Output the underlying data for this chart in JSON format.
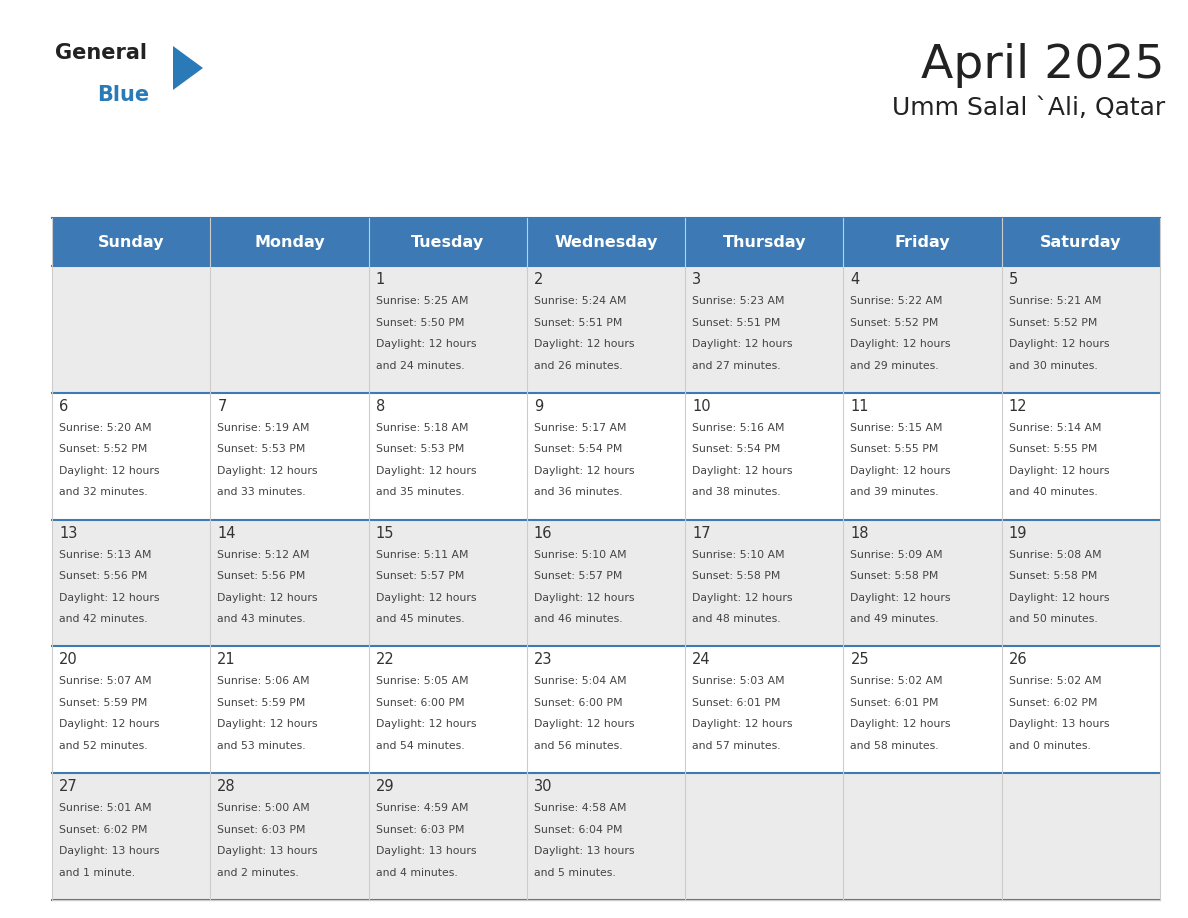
{
  "title": "April 2025",
  "subtitle": "Umm Salal `Ali, Qatar",
  "days_of_week": [
    "Sunday",
    "Monday",
    "Tuesday",
    "Wednesday",
    "Thursday",
    "Friday",
    "Saturday"
  ],
  "header_bg": "#3d7ab5",
  "header_text": "#ffffff",
  "row_bg_even": "#ebebeb",
  "row_bg_odd": "#ffffff",
  "cell_border_blue": "#3d7ab5",
  "cell_border_light": "#cccccc",
  "day_num_color": "#333333",
  "text_color": "#444444",
  "title_color": "#222222",
  "logo_text_color": "#222222",
  "logo_blue_color": "#2a7ab8",
  "logo_triangle_color": "#2a7ab8",
  "calendar_data": [
    [
      {
        "day": "",
        "sunrise": "",
        "sunset": "",
        "daylight": "",
        "daylight2": ""
      },
      {
        "day": "",
        "sunrise": "",
        "sunset": "",
        "daylight": "",
        "daylight2": ""
      },
      {
        "day": "1",
        "sunrise": "Sunrise: 5:25 AM",
        "sunset": "Sunset: 5:50 PM",
        "daylight": "Daylight: 12 hours",
        "daylight2": "and 24 minutes."
      },
      {
        "day": "2",
        "sunrise": "Sunrise: 5:24 AM",
        "sunset": "Sunset: 5:51 PM",
        "daylight": "Daylight: 12 hours",
        "daylight2": "and 26 minutes."
      },
      {
        "day": "3",
        "sunrise": "Sunrise: 5:23 AM",
        "sunset": "Sunset: 5:51 PM",
        "daylight": "Daylight: 12 hours",
        "daylight2": "and 27 minutes."
      },
      {
        "day": "4",
        "sunrise": "Sunrise: 5:22 AM",
        "sunset": "Sunset: 5:52 PM",
        "daylight": "Daylight: 12 hours",
        "daylight2": "and 29 minutes."
      },
      {
        "day": "5",
        "sunrise": "Sunrise: 5:21 AM",
        "sunset": "Sunset: 5:52 PM",
        "daylight": "Daylight: 12 hours",
        "daylight2": "and 30 minutes."
      }
    ],
    [
      {
        "day": "6",
        "sunrise": "Sunrise: 5:20 AM",
        "sunset": "Sunset: 5:52 PM",
        "daylight": "Daylight: 12 hours",
        "daylight2": "and 32 minutes."
      },
      {
        "day": "7",
        "sunrise": "Sunrise: 5:19 AM",
        "sunset": "Sunset: 5:53 PM",
        "daylight": "Daylight: 12 hours",
        "daylight2": "and 33 minutes."
      },
      {
        "day": "8",
        "sunrise": "Sunrise: 5:18 AM",
        "sunset": "Sunset: 5:53 PM",
        "daylight": "Daylight: 12 hours",
        "daylight2": "and 35 minutes."
      },
      {
        "day": "9",
        "sunrise": "Sunrise: 5:17 AM",
        "sunset": "Sunset: 5:54 PM",
        "daylight": "Daylight: 12 hours",
        "daylight2": "and 36 minutes."
      },
      {
        "day": "10",
        "sunrise": "Sunrise: 5:16 AM",
        "sunset": "Sunset: 5:54 PM",
        "daylight": "Daylight: 12 hours",
        "daylight2": "and 38 minutes."
      },
      {
        "day": "11",
        "sunrise": "Sunrise: 5:15 AM",
        "sunset": "Sunset: 5:55 PM",
        "daylight": "Daylight: 12 hours",
        "daylight2": "and 39 minutes."
      },
      {
        "day": "12",
        "sunrise": "Sunrise: 5:14 AM",
        "sunset": "Sunset: 5:55 PM",
        "daylight": "Daylight: 12 hours",
        "daylight2": "and 40 minutes."
      }
    ],
    [
      {
        "day": "13",
        "sunrise": "Sunrise: 5:13 AM",
        "sunset": "Sunset: 5:56 PM",
        "daylight": "Daylight: 12 hours",
        "daylight2": "and 42 minutes."
      },
      {
        "day": "14",
        "sunrise": "Sunrise: 5:12 AM",
        "sunset": "Sunset: 5:56 PM",
        "daylight": "Daylight: 12 hours",
        "daylight2": "and 43 minutes."
      },
      {
        "day": "15",
        "sunrise": "Sunrise: 5:11 AM",
        "sunset": "Sunset: 5:57 PM",
        "daylight": "Daylight: 12 hours",
        "daylight2": "and 45 minutes."
      },
      {
        "day": "16",
        "sunrise": "Sunrise: 5:10 AM",
        "sunset": "Sunset: 5:57 PM",
        "daylight": "Daylight: 12 hours",
        "daylight2": "and 46 minutes."
      },
      {
        "day": "17",
        "sunrise": "Sunrise: 5:10 AM",
        "sunset": "Sunset: 5:58 PM",
        "daylight": "Daylight: 12 hours",
        "daylight2": "and 48 minutes."
      },
      {
        "day": "18",
        "sunrise": "Sunrise: 5:09 AM",
        "sunset": "Sunset: 5:58 PM",
        "daylight": "Daylight: 12 hours",
        "daylight2": "and 49 minutes."
      },
      {
        "day": "19",
        "sunrise": "Sunrise: 5:08 AM",
        "sunset": "Sunset: 5:58 PM",
        "daylight": "Daylight: 12 hours",
        "daylight2": "and 50 minutes."
      }
    ],
    [
      {
        "day": "20",
        "sunrise": "Sunrise: 5:07 AM",
        "sunset": "Sunset: 5:59 PM",
        "daylight": "Daylight: 12 hours",
        "daylight2": "and 52 minutes."
      },
      {
        "day": "21",
        "sunrise": "Sunrise: 5:06 AM",
        "sunset": "Sunset: 5:59 PM",
        "daylight": "Daylight: 12 hours",
        "daylight2": "and 53 minutes."
      },
      {
        "day": "22",
        "sunrise": "Sunrise: 5:05 AM",
        "sunset": "Sunset: 6:00 PM",
        "daylight": "Daylight: 12 hours",
        "daylight2": "and 54 minutes."
      },
      {
        "day": "23",
        "sunrise": "Sunrise: 5:04 AM",
        "sunset": "Sunset: 6:00 PM",
        "daylight": "Daylight: 12 hours",
        "daylight2": "and 56 minutes."
      },
      {
        "day": "24",
        "sunrise": "Sunrise: 5:03 AM",
        "sunset": "Sunset: 6:01 PM",
        "daylight": "Daylight: 12 hours",
        "daylight2": "and 57 minutes."
      },
      {
        "day": "25",
        "sunrise": "Sunrise: 5:02 AM",
        "sunset": "Sunset: 6:01 PM",
        "daylight": "Daylight: 12 hours",
        "daylight2": "and 58 minutes."
      },
      {
        "day": "26",
        "sunrise": "Sunrise: 5:02 AM",
        "sunset": "Sunset: 6:02 PM",
        "daylight": "Daylight: 13 hours",
        "daylight2": "and 0 minutes."
      }
    ],
    [
      {
        "day": "27",
        "sunrise": "Sunrise: 5:01 AM",
        "sunset": "Sunset: 6:02 PM",
        "daylight": "Daylight: 13 hours",
        "daylight2": "and 1 minute."
      },
      {
        "day": "28",
        "sunrise": "Sunrise: 5:00 AM",
        "sunset": "Sunset: 6:03 PM",
        "daylight": "Daylight: 13 hours",
        "daylight2": "and 2 minutes."
      },
      {
        "day": "29",
        "sunrise": "Sunrise: 4:59 AM",
        "sunset": "Sunset: 6:03 PM",
        "daylight": "Daylight: 13 hours",
        "daylight2": "and 4 minutes."
      },
      {
        "day": "30",
        "sunrise": "Sunrise: 4:58 AM",
        "sunset": "Sunset: 6:04 PM",
        "daylight": "Daylight: 13 hours",
        "daylight2": "and 5 minutes."
      },
      {
        "day": "",
        "sunrise": "",
        "sunset": "",
        "daylight": "",
        "daylight2": ""
      },
      {
        "day": "",
        "sunrise": "",
        "sunset": "",
        "daylight": "",
        "daylight2": ""
      },
      {
        "day": "",
        "sunrise": "",
        "sunset": "",
        "daylight": "",
        "daylight2": ""
      }
    ]
  ]
}
